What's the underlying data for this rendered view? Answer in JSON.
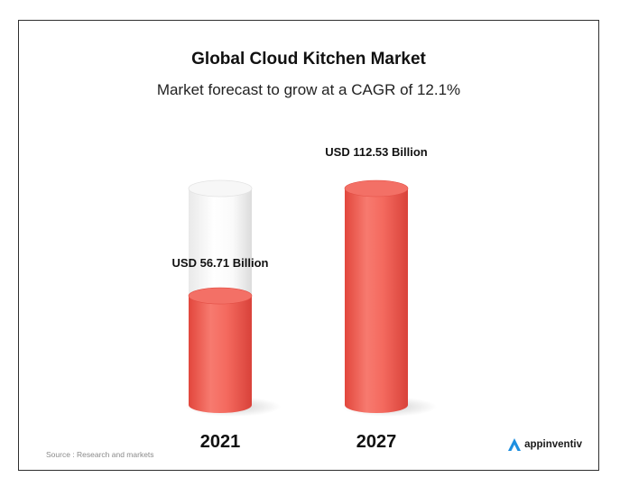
{
  "chart_data": {
    "type": "bar",
    "title": "Global Cloud Kitchen Market",
    "subtitle": "Market forecast to grow at a CAGR of 12.1%",
    "categories": [
      "2021",
      "2027"
    ],
    "values": [
      56.71,
      112.53
    ],
    "data_labels": [
      "USD 56.71 Billion",
      "USD 112.53 Billion"
    ],
    "unit": "USD Billion",
    "bar_color": "#f0655a",
    "remainder_color": "#f6f6f6"
  },
  "footer": {
    "source": "Source : Research and markets",
    "brand": "appinventiv",
    "brand_icon": "appinventiv-logo-icon"
  },
  "colors": {
    "brand_accent": "#1d8fe0",
    "border": "#2f2f2f"
  }
}
